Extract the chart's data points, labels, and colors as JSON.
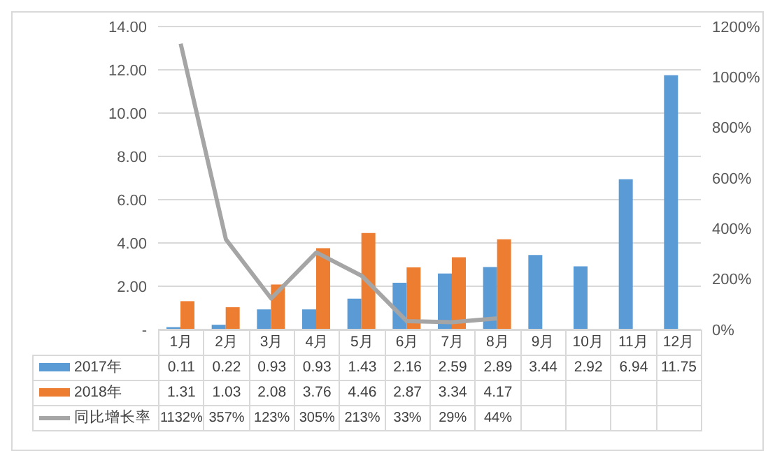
{
  "chart_data": {
    "type": "bar",
    "categories": [
      "1月",
      "2月",
      "3月",
      "4月",
      "5月",
      "6月",
      "7月",
      "8月",
      "9月",
      "10月",
      "11月",
      "12月"
    ],
    "series": [
      {
        "name": "2017年",
        "color": "#5b9bd5",
        "values": [
          0.11,
          0.22,
          0.93,
          0.93,
          1.43,
          2.16,
          2.59,
          2.89,
          3.44,
          2.92,
          6.94,
          11.75
        ],
        "value_labels": [
          "0.11",
          "0.22",
          "0.93",
          "0.93",
          "1.43",
          "2.16",
          "2.59",
          "2.89",
          "3.44",
          "2.92",
          "6.94",
          "11.75"
        ]
      },
      {
        "name": "2018年",
        "color": "#ed7d31",
        "values": [
          1.31,
          1.03,
          2.08,
          3.76,
          4.46,
          2.87,
          3.34,
          4.17,
          null,
          null,
          null,
          null
        ],
        "value_labels": [
          "1.31",
          "1.03",
          "2.08",
          "3.76",
          "4.46",
          "2.87",
          "3.34",
          "4.17",
          null,
          null,
          null,
          null
        ]
      },
      {
        "name": "同比增长率",
        "type": "line",
        "axis": "y2",
        "color": "#a5a5a5",
        "values": [
          1132,
          357,
          123,
          305,
          213,
          33,
          29,
          44,
          null,
          null,
          null,
          null
        ],
        "value_labels": [
          "1132%",
          "357%",
          "123%",
          "305%",
          "213%",
          "33%",
          "29%",
          "44%",
          null,
          null,
          null,
          null
        ]
      }
    ],
    "ylim": [
      0,
      14
    ],
    "yticks": [
      {
        "value": 0,
        "label": "-"
      },
      {
        "value": 2,
        "label": "2.00"
      },
      {
        "value": 4,
        "label": "4.00"
      },
      {
        "value": 6,
        "label": "6.00"
      },
      {
        "value": 8,
        "label": "8.00"
      },
      {
        "value": 10,
        "label": "10.00"
      },
      {
        "value": 12,
        "label": "12.00"
      },
      {
        "value": 14,
        "label": "14.00"
      }
    ],
    "y2lim": [
      0,
      1200
    ],
    "y2ticks": [
      {
        "value": 0,
        "label": "0%"
      },
      {
        "value": 200,
        "label": "200%"
      },
      {
        "value": 400,
        "label": "400%"
      },
      {
        "value": 600,
        "label": "600%"
      },
      {
        "value": 800,
        "label": "800%"
      },
      {
        "value": 1000,
        "label": "1000%"
      },
      {
        "value": 1200,
        "label": "1200%"
      }
    ],
    "grid": "y",
    "legend": "bottom",
    "data_labels": true
  }
}
